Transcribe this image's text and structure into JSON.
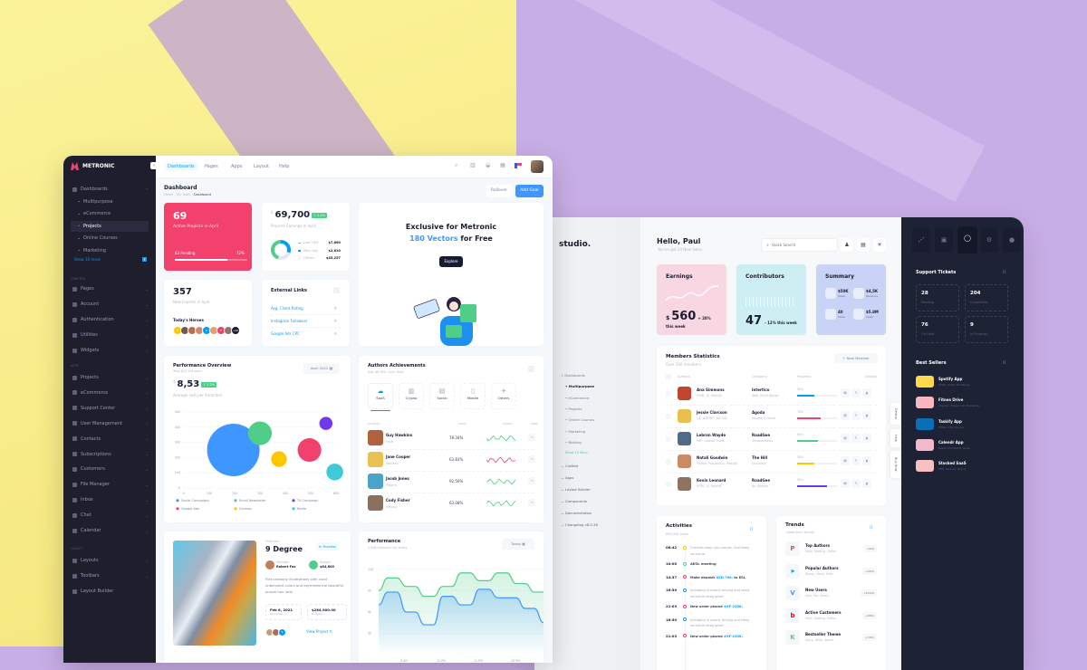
{
  "left_app": {
    "brand": "METRONIC",
    "sidebar": {
      "items": [
        {
          "label": "Dashboards",
          "type": "top",
          "chev": "⌃"
        },
        {
          "label": "Multipurpose",
          "type": "sub"
        },
        {
          "label": "eCommerce",
          "type": "sub"
        },
        {
          "label": "Projects",
          "type": "sub",
          "active": true
        },
        {
          "label": "Online Courses",
          "type": "sub"
        },
        {
          "label": "Marketing",
          "type": "sub"
        }
      ],
      "show_more": "Show 10 more",
      "section_crafted": "CRAFTED",
      "crafted": [
        "Pages",
        "Account",
        "Authentication",
        "Utilities",
        "Widgets"
      ],
      "section_apps": "APPS",
      "apps": [
        "Projects",
        "eCommerce",
        "Support Center",
        "User Management",
        "Contacts",
        "Subscriptions",
        "Customers",
        "File Manager",
        "Inbox",
        "Chat",
        "Calendar"
      ],
      "section_layout": "LAYOUT",
      "layout": [
        "Layouts",
        "Toolbars",
        "Layout Builder"
      ]
    },
    "top_tabs": [
      "Dashboards",
      "Pages",
      "Apps",
      "Layout",
      "Help"
    ],
    "header": {
      "title": "Dashboard",
      "breadcrumb": [
        "Home",
        "My Team",
        "Dashboard"
      ],
      "rollover": "Rollover",
      "add_goal": "Add Goal"
    },
    "projects_card": {
      "value": "69",
      "label": "Active Projects in April",
      "pending": "43 Pending",
      "percent_text": "72%",
      "progress": 72,
      "color": "#f1416c"
    },
    "earnings_card": {
      "currency": "$",
      "value": "69,700",
      "badge": "↑ 2.2%",
      "label": "Projects Earnings in April",
      "legend": [
        {
          "name": "Leaf CRM",
          "value": "$7,660",
          "color": "#50cd89"
        },
        {
          "name": "Mivy App",
          "value": "$2,820",
          "color": "#009ef7"
        },
        {
          "name": "Others",
          "value": "$45,257",
          "color": "#e4e6ef"
        }
      ]
    },
    "banner": {
      "line1": "Exclusive for Metronic",
      "highlight": "180 Vectors",
      "line2_rest": " for Free",
      "button": "Explore"
    },
    "experts_card": {
      "value": "357",
      "label": "New Experts in April",
      "heroes_title": "Today's Heroes",
      "avatars": [
        "A",
        "",
        "",
        "",
        "S",
        "",
        "P",
        "",
        "+42"
      ]
    },
    "external_links": {
      "title": "External Links",
      "links": [
        "Avg. Client Rating",
        "Instagram Followers",
        "Google Ads CPC"
      ]
    },
    "performance_overview": {
      "title": "Performance Overview",
      "subtitle": "Total $37,345 sales",
      "currency": "$",
      "value": "8,53",
      "badge": "↑ 2.2%",
      "label": "Average cost per iteraction",
      "period": "April 2022",
      "chart_data": {
        "type": "scatter",
        "xlim": [
          0,
          600
        ],
        "ylim": [
          0,
          500
        ],
        "x_ticks": [
          "0",
          "100",
          "200",
          "300",
          "400",
          "500",
          "600"
        ],
        "y_ticks": [
          "0",
          "100",
          "200",
          "300",
          "400",
          "500"
        ],
        "grid": true,
        "legend_position": "bottom",
        "series": [
          {
            "name": "Social Campaigns",
            "x": 195,
            "y": 250,
            "size": 100,
            "color": "#3e97ff"
          },
          {
            "name": "Email Newsletter",
            "x": 300,
            "y": 360,
            "size": 45,
            "color": "#50cd89"
          },
          {
            "name": "TV Campaign",
            "x": 560,
            "y": 425,
            "size": 25,
            "color": "#7239ea"
          },
          {
            "name": "Google Ads",
            "x": 495,
            "y": 250,
            "size": 45,
            "color": "#f1416c"
          },
          {
            "name": "Courses",
            "x": 375,
            "y": 190,
            "size": 30,
            "color": "#ffc700"
          },
          {
            "name": "Radio",
            "x": 595,
            "y": 105,
            "size": 32,
            "color": "#3ecbd7"
          }
        ]
      }
    },
    "authors": {
      "title": "Authors Achievements",
      "subtitle": "Avg. 69.34% Conv. Rate",
      "categories": [
        "SaaS",
        "Crypto",
        "Social",
        "Mobile",
        "Others"
      ],
      "columns": [
        "AUTHOR",
        "CONV.",
        "CHART",
        "VIEW"
      ],
      "rows": [
        {
          "name": "Guy Hawkins",
          "country": "Haiti",
          "conv": "78.34%",
          "color": "#50cd89"
        },
        {
          "name": "Jane Cooper",
          "country": "Monaco",
          "conv": "63.83%",
          "color": "#f1416c"
        },
        {
          "name": "Jacob Jones",
          "country": "Poland",
          "conv": "92.56%",
          "color": "#50cd89"
        },
        {
          "name": "Cody Fisher",
          "country": "Mexico",
          "conv": "63.08%",
          "color": "#50cd89"
        }
      ]
    },
    "featured": {
      "tag": "Featured",
      "title": "9 Degree",
      "status": "In Process",
      "manager_label": "Manager",
      "manager": "Robert Fox",
      "budget_label": "Budget",
      "budget": "$64,800",
      "description": "Flat cartoony illustrations with vivid unblended colors and asymmetrical beautiful purple hair lady",
      "due_date": "Feb 6, 2021",
      "due_label": "Due Date",
      "budget_total": "$284,900.00",
      "budget_total_label": "Budget",
      "team_extra": "S",
      "view": "View Project"
    },
    "performance": {
      "title": "Performance",
      "subtitle": "1,046 Inbound Calls today",
      "period": "Today",
      "chart_data": {
        "type": "area",
        "ylim": [
          0,
          130
        ],
        "y_ticks": [
          "30",
          "60",
          "90",
          "120"
        ],
        "x_ticks": [
          "9 AM",
          "12 PM",
          "15 PM",
          "18 PM"
        ],
        "series": [
          {
            "color": "#50cd89",
            "values": [
              90,
              108,
              108,
              96,
              96,
              82,
              82,
              96,
              96,
              115,
              115,
              104,
              104,
              115,
              115,
              100,
              100,
              88,
              88
            ]
          },
          {
            "color": "#3e97ff",
            "values": [
              70,
              88,
              88,
              60,
              60,
              42,
              42,
              82,
              82,
              70,
              70,
              92,
              92,
              80,
              80,
              80,
              65,
              65,
              45
            ]
          }
        ]
      }
    }
  },
  "right_app": {
    "brand": "studio.",
    "greeting": "Hello, Paul",
    "greeting_sub": "You've got 24 New Sales",
    "search_placeholder": "Quick Search",
    "sidebar": {
      "items": [
        {
          "label": "Dashboards",
          "type": "top"
        },
        {
          "label": "Multipurpose",
          "type": "sub",
          "active": true
        },
        {
          "label": "eCommerce",
          "type": "sub"
        },
        {
          "label": "Projects",
          "type": "sub"
        },
        {
          "label": "Online Courses",
          "type": "sub"
        },
        {
          "label": "Marketing",
          "type": "sub"
        },
        {
          "label": "Bidding",
          "type": "sub"
        }
      ],
      "show_more": "Show 10 More",
      "bottom": [
        "Crafted",
        "Apps",
        "Layout Builder",
        "Components",
        "Documentation",
        "Changelog v8.0.38"
      ]
    },
    "earnings": {
      "title": "Earnings",
      "currency": "$",
      "value": "560",
      "delta": "+ 28%",
      "sub": "this week",
      "color": "#f8d7e3"
    },
    "contributors": {
      "title": "Contributors",
      "value": "47",
      "delta": "- 12% this week",
      "color": "#cdeff3"
    },
    "summary": {
      "title": "Summary",
      "color": "#c8d3f5",
      "items": [
        {
          "value": "$50K",
          "label": "Sales"
        },
        {
          "value": "$4,5K",
          "label": "Revenue"
        },
        {
          "value": "40",
          "label": "Tasks"
        },
        {
          "value": "$5.8M",
          "label": "Sales"
        }
      ]
    },
    "members": {
      "title": "Members Statistics",
      "subtitle": "Over 500 members",
      "new_button": "New Member",
      "columns": [
        "Authors",
        "Company",
        "Progress",
        "Actions"
      ],
      "rows": [
        {
          "name": "Ana Simmons",
          "skills": "HTML, JS, ReactJS",
          "company": "Intertico",
          "role": "Web, UI/UX Design",
          "progress": 50,
          "color": "#009ef7"
        },
        {
          "name": "Jessie Clarcson",
          "skills": "C#, ASP.NET, MS SQL",
          "company": "Agoda",
          "role": "Houses & Hotels",
          "progress": 70,
          "color": "#f1416c"
        },
        {
          "name": "Lebron Wayde",
          "skills": "PHP, Laravel, VueJS",
          "company": "RoadGee",
          "role": "Transportation",
          "progress": 60,
          "color": "#50cd89"
        },
        {
          "name": "Natali Goodwin",
          "skills": "Python, PostgreSQL, ReactJS",
          "company": "The Hill",
          "role": "Insurance",
          "progress": 50,
          "color": "#ffc700"
        },
        {
          "name": "Kevin Leonard",
          "skills": "HTML, JS, ReactJS",
          "company": "RoadGee",
          "role": "Art Director",
          "progress": 90,
          "color": "#7239ea"
        }
      ]
    },
    "side_tabs": [
      "Demos",
      "Help",
      "Buy Now"
    ],
    "activities": {
      "title": "Activities",
      "subtitle": "890,344 Sales",
      "items": [
        {
          "time": "08:42",
          "text": "Outlines keep you honest. And keep structure",
          "color": "#ffc700",
          "muted": true
        },
        {
          "time": "10:00",
          "text": "AEOL meeting",
          "color": "#50cd89"
        },
        {
          "time": "14:37",
          "text": "Make deposit",
          "link": "USD 700",
          "tail": ". to ESL",
          "color": "#f1416c"
        },
        {
          "time": "16:50",
          "text": "Indulging in poorly driving and keep structure keep great",
          "color": "#009ef7",
          "muted": true
        },
        {
          "time": "21:03",
          "text": "New order placed",
          "link": "#XF-2356",
          "tail": ".",
          "color": "#f1416c"
        },
        {
          "time": "16:50",
          "text": "Indulging in poorly driving and keep structure keep great",
          "color": "#009ef7",
          "muted": true
        },
        {
          "time": "21:03",
          "text": "New order placed",
          "link": "#XF-2356",
          "tail": ".",
          "color": "#f1416c"
        }
      ]
    },
    "trends": {
      "title": "Trends",
      "subtitle": "Latest tech trends",
      "items": [
        {
          "title": "Top Authors",
          "sub": "Mark, Rowling, Esther",
          "badge": "+82$",
          "icon": "P",
          "color": "#f1416c"
        },
        {
          "title": "Popular Authors",
          "sub": "Randy, Steve, Mike",
          "badge": "+280$",
          "icon": "➤",
          "color": "#009ef7"
        },
        {
          "title": "New Users",
          "sub": "John, Pat, Jimmy",
          "badge": "+4500$",
          "icon": "V",
          "color": "#3e97ff"
        },
        {
          "title": "Active Customers",
          "sub": "Mark, Rowling, Esther",
          "badge": "+686$",
          "icon": "b",
          "color": "#e2001a"
        },
        {
          "title": "Bestseller Theme",
          "sub": "Disco, Retro, Sports",
          "badge": "+726$",
          "icon": "K",
          "color": "#50cd89"
        }
      ]
    },
    "dark_panel": {
      "support_title": "Support Tickets",
      "tickets": [
        {
          "value": "28",
          "label": "Pending"
        },
        {
          "value": "204",
          "label": "Completed"
        },
        {
          "value": "76",
          "label": "On Hold"
        },
        {
          "value": "9",
          "label": "In Progress"
        }
      ],
      "best_title": "Best Sellers",
      "sellers": [
        {
          "name": "Spotify App",
          "tech": "HTML, SASS, Bootstrap",
          "color": "#ffd84d"
        },
        {
          "name": "Fitnes Drive",
          "tech": "Angular, Typescript, Bootstrap",
          "color": "#f7b6c0"
        },
        {
          "name": "Taskify App",
          "tech": "HTML, CSS, jQuery",
          "color": "#0a6fb7"
        },
        {
          "name": "Calendr App",
          "tech": "React, MongoDB, Node",
          "color": "#f4b8c8"
        },
        {
          "name": "Stocked SaaS",
          "tech": "PHP, Laravel, Oracle",
          "color": "#f7c1c1"
        }
      ]
    }
  }
}
